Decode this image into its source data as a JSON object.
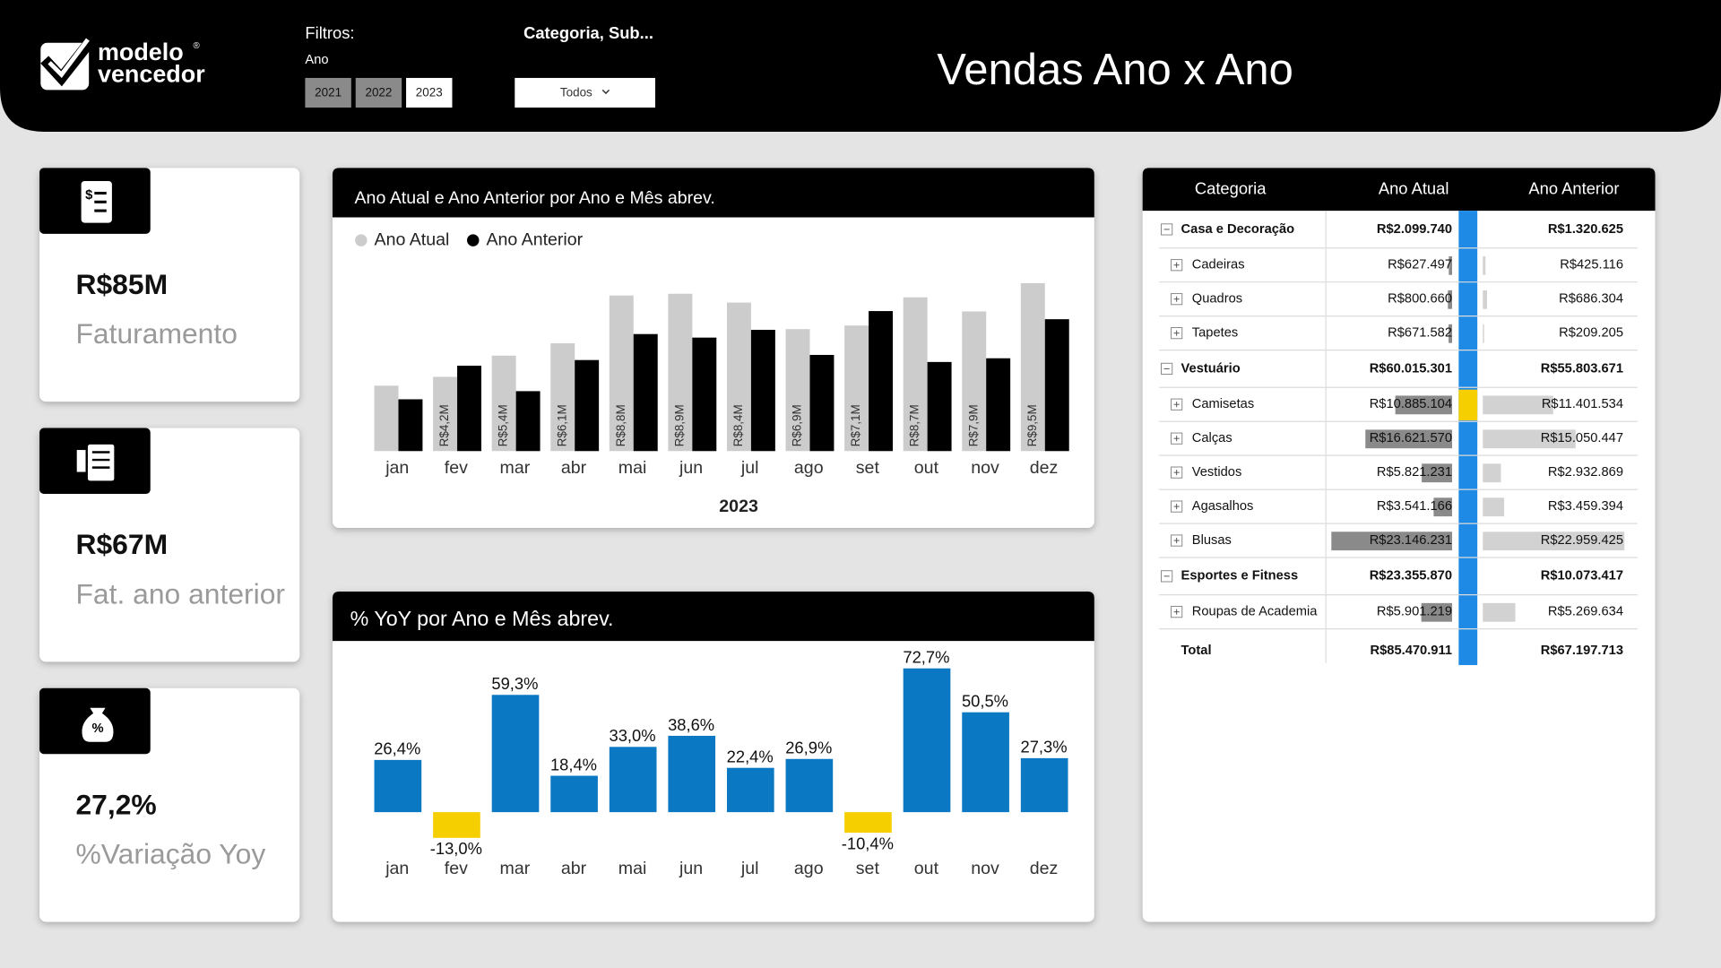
{
  "header": {
    "brand_line1": "modelo",
    "brand_line2": "vencedor",
    "brand_mark": "®",
    "title": "Vendas Ano x Ano"
  },
  "filters": {
    "label": "Filtros:",
    "year_label": "Ano",
    "years": [
      "2021",
      "2022",
      "2023"
    ],
    "category_label": "Categoria, Sub...",
    "category_value": "Todos"
  },
  "kpis": [
    {
      "value": "R$85M",
      "label": "Faturamento"
    },
    {
      "value": "R$67M",
      "label": "Fat. ano anterior"
    },
    {
      "value": "27,2%",
      "label": "%Variação Yoy"
    }
  ],
  "chart_data": [
    {
      "type": "bar",
      "title": "Ano Atual e Ano Anterior por Ano e Mês abrev.",
      "legend": "top-left",
      "xlabel": "2023",
      "categories": [
        "jan",
        "fev",
        "mar",
        "abr",
        "mai",
        "jun",
        "jul",
        "ago",
        "set",
        "out",
        "nov",
        "dez"
      ],
      "series": [
        {
          "name": "Ano Atual",
          "color": "#cccccc",
          "values": [
            3.7,
            4.2,
            5.4,
            6.1,
            8.8,
            8.9,
            8.4,
            6.9,
            7.1,
            8.7,
            7.9,
            9.5
          ],
          "value_labels": [
            null,
            "R$4,2M",
            "R$5,4M",
            "R$6,1M",
            "R$8,8M",
            "R$8,9M",
            "R$8,4M",
            "R$6,9M",
            "R$7,1M",
            "R$8,7M",
            "R$7,9M",
            "R$9,5M"
          ]
        },
        {
          "name": "Ano Anterior",
          "color": "#000000",
          "values": [
            2.93,
            4.83,
            3.39,
            5.15,
            6.62,
            6.42,
            6.86,
            5.44,
            7.92,
            5.04,
            5.25,
            7.46
          ]
        }
      ]
    },
    {
      "type": "bar",
      "title": "% YoY por Ano e Mês abrev.",
      "color": "#0a78c2",
      "negative_color": "#f5cf00",
      "categories": [
        "jan",
        "fev",
        "mar",
        "abr",
        "mai",
        "jun",
        "jul",
        "ago",
        "set",
        "out",
        "nov",
        "dez"
      ],
      "values": [
        26.4,
        -13.0,
        59.3,
        18.4,
        33.0,
        38.6,
        22.4,
        26.9,
        -10.4,
        72.7,
        50.5,
        27.3
      ],
      "value_labels": [
        "26,4%",
        "-13,0%",
        "59,3%",
        "18,4%",
        "33,0%",
        "38,6%",
        "22,4%",
        "26,9%",
        "-10,4%",
        "72,7%",
        "50,5%",
        "27,3%"
      ]
    }
  ],
  "table": {
    "columns": [
      "Categoria",
      "Ano Atual",
      "Ano Anterior"
    ],
    "rows": [
      {
        "level": 1,
        "name": "Casa e Decoração",
        "current": "R$2.099.740",
        "previous": "R$1.320.625"
      },
      {
        "level": 2,
        "name": "Cadeiras",
        "current": "R$627.497",
        "previous": "R$425.116"
      },
      {
        "level": 2,
        "name": "Quadros",
        "current": "R$800.660",
        "previous": "R$686.304"
      },
      {
        "level": 2,
        "name": "Tapetes",
        "current": "R$671.582",
        "previous": "R$209.205"
      },
      {
        "level": 1,
        "name": "Vestuário",
        "current": "R$60.015.301",
        "previous": "R$55.803.671"
      },
      {
        "level": 2,
        "name": "Camisetas",
        "current": "R$10.885.104",
        "previous": "R$11.401.534"
      },
      {
        "level": 2,
        "name": "Calças",
        "current": "R$16.621.570",
        "previous": "R$15.050.447"
      },
      {
        "level": 2,
        "name": "Vestidos",
        "current": "R$5.821.231",
        "previous": "R$2.932.869"
      },
      {
        "level": 2,
        "name": "Agasalhos",
        "current": "R$3.541.166",
        "previous": "R$3.459.394"
      },
      {
        "level": 2,
        "name": "Blusas",
        "current": "R$23.146.231",
        "previous": "R$22.959.425"
      },
      {
        "level": 1,
        "name": "Esportes e Fitness",
        "current": "R$23.355.870",
        "previous": "R$10.073.417"
      },
      {
        "level": 2,
        "name": "Roupas de Academia",
        "current": "R$5.901.219",
        "previous": "R$5.269.634"
      }
    ],
    "total": {
      "name": "Total",
      "current": "R$85.470.911",
      "previous": "R$67.197.713"
    }
  }
}
